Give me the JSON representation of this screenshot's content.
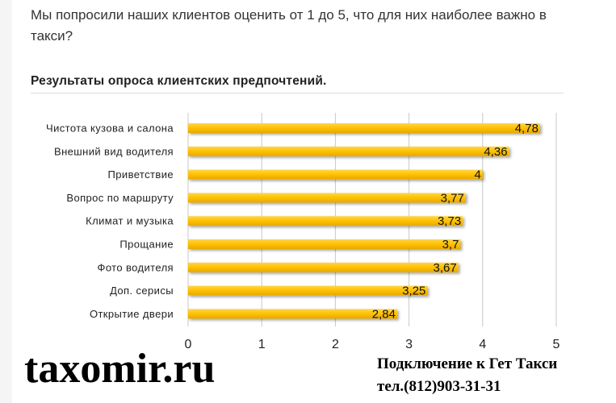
{
  "intro_text": "Мы попросили наших клиентов оценить от 1 до 5, что для них наиболее важно в такси?",
  "chart_data": {
    "type": "bar",
    "orientation": "horizontal",
    "title": "Результаты опроса клиентских предпочтений.",
    "categories": [
      "Чистота кузова и салона",
      "Внешний вид водителя",
      "Приветствие",
      "Вопрос по маршруту",
      "Климат и музыка",
      "Прощание",
      "Фото водителя",
      "Доп. серисы",
      "Открытие двери"
    ],
    "values": [
      4.78,
      4.36,
      4,
      3.77,
      3.73,
      3.7,
      3.67,
      3.25,
      2.84
    ],
    "value_labels": [
      "4,78",
      "4,36",
      "4",
      "3,77",
      "3,73",
      "3,7",
      "3,67",
      "3,25",
      "2,84"
    ],
    "x_ticks": [
      0,
      1,
      2,
      3,
      4,
      5
    ],
    "xlim": [
      0,
      5
    ],
    "grid": true,
    "bar_color": "#ffc000"
  },
  "footer": {
    "logo": "taxomir.ru",
    "contact_line1": "Подключение к Гет Такси",
    "contact_line2": "тел.(812)903-31-31"
  }
}
